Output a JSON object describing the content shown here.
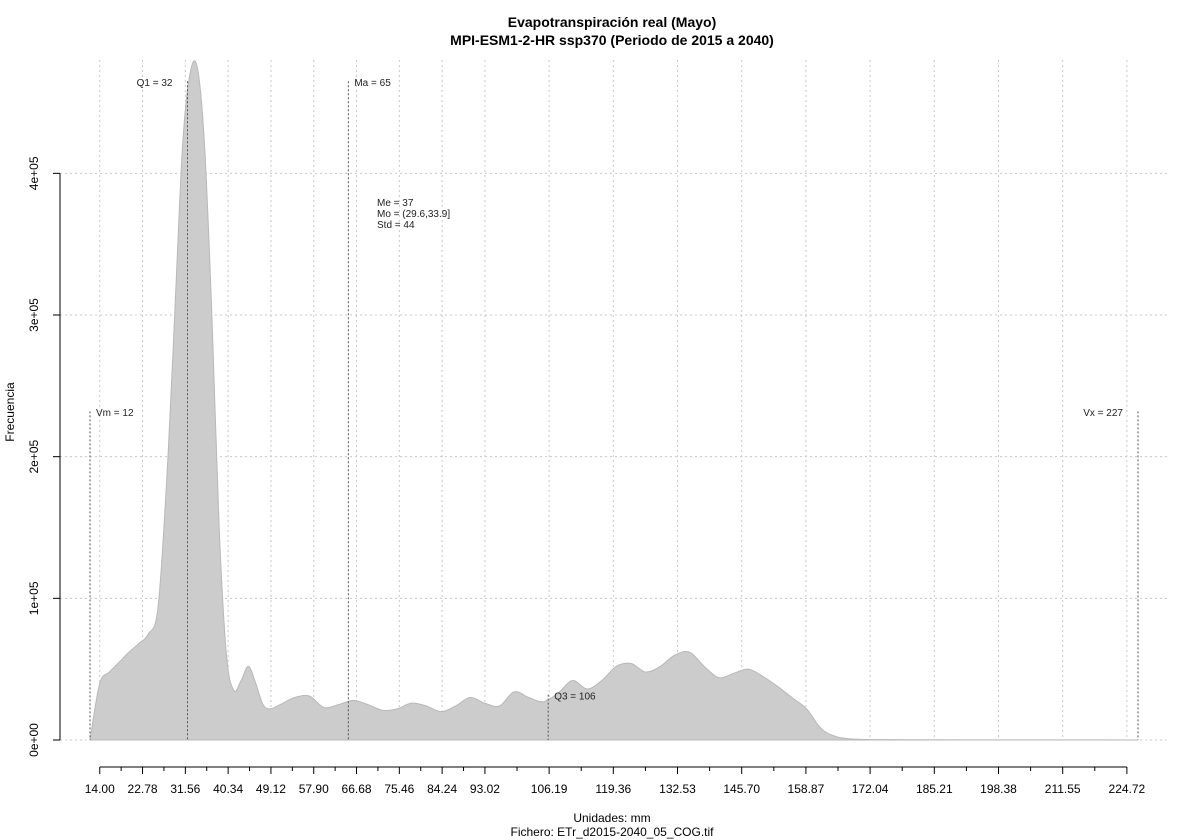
{
  "chart_data": {
    "type": "area",
    "title": "Evapotranspiración real (Mayo)",
    "subtitle": "MPI-ESM1-2-HR ssp370 (Periodo de 2015 a 2040)",
    "xlabel": "Unidades: mm",
    "ylabel": "Frecuencia",
    "caption": "Fichero: ETr_d2015-2040_05_COG.tif",
    "xlim": [
      12,
      227
    ],
    "ylim": [
      0,
      480000
    ],
    "x_ticks": [
      14.0,
      22.78,
      31.56,
      40.34,
      49.12,
      57.9,
      66.68,
      75.46,
      84.24,
      93.02,
      106.19,
      119.36,
      132.53,
      145.7,
      158.87,
      172.04,
      185.21,
      198.38,
      211.55,
      224.72
    ],
    "x_tick_labels": [
      "14.00",
      "22.78",
      "31.56",
      "40.34",
      "49.12",
      "57.90",
      "66.68",
      "75.46",
      "84.24",
      "93.02",
      "106.19",
      "119.36",
      "132.53",
      "145.70",
      "158.87",
      "172.04",
      "185.21",
      "198.38",
      "211.55",
      "224.72"
    ],
    "y_ticks": [
      0,
      100000,
      200000,
      300000,
      400000
    ],
    "y_tick_labels": [
      "0e+00",
      "1e+05",
      "2e+05",
      "3e+05",
      "4e+05"
    ],
    "grid": true,
    "fill_color": "#cccccc",
    "x": [
      12.0,
      14.0,
      16.0,
      18.0,
      20.0,
      22.0,
      24.0,
      26.0,
      28.0,
      29.5,
      31.0,
      32.5,
      34.0,
      35.5,
      37.0,
      38.5,
      40.0,
      41.5,
      43.0,
      44.5,
      46.0,
      47.5,
      49.0,
      51.0,
      54.0,
      57.0,
      60.0,
      63.0,
      66.0,
      69.0,
      72.0,
      75.0,
      78.0,
      81.0,
      84.0,
      87.0,
      90.0,
      93.0,
      96.0,
      99.0,
      102.0,
      105.0,
      108.0,
      111.0,
      114.0,
      117.0,
      120.0,
      123.0,
      126.0,
      129.0,
      132.0,
      135.0,
      138.0,
      141.0,
      144.0,
      147.0,
      150.0,
      153.0,
      156.0,
      159.0,
      162.0,
      165.0,
      168.0,
      172.0,
      180.0,
      200.0,
      220.0,
      227.0
    ],
    "y": [
      0,
      40000,
      48000,
      55000,
      62000,
      68000,
      75000,
      95000,
      200000,
      310000,
      420000,
      470000,
      475000,
      420000,
      300000,
      150000,
      60000,
      35000,
      42000,
      52000,
      40000,
      25000,
      22000,
      25000,
      30000,
      31000,
      23000,
      25000,
      28000,
      25000,
      21000,
      22000,
      26000,
      24000,
      20000,
      24000,
      30000,
      26000,
      24000,
      34000,
      30000,
      27000,
      33000,
      42000,
      36000,
      42000,
      52000,
      54000,
      48000,
      52000,
      60000,
      62000,
      52000,
      44000,
      47000,
      50000,
      45000,
      38000,
      30000,
      22000,
      8000,
      2500,
      800,
      300,
      200,
      100,
      50,
      0
    ],
    "markers": [
      {
        "label": "Vm = 12",
        "x": 12,
        "height": 232000,
        "label_side": "right"
      },
      {
        "label": "Q1 = 32",
        "x": 32,
        "height": 465000,
        "label_side": "left"
      },
      {
        "label": "Ma = 65",
        "x": 65,
        "height": 465000,
        "label_side": "right"
      },
      {
        "label": "Q3 = 106",
        "x": 106,
        "height": 32000,
        "label_side": "right"
      },
      {
        "label": "Vx = 227",
        "x": 227,
        "height": 232000,
        "label_side": "left"
      }
    ],
    "stats": [
      "Me = 37",
      "Mo = (29.6,33.9]",
      "Std = 44"
    ]
  }
}
